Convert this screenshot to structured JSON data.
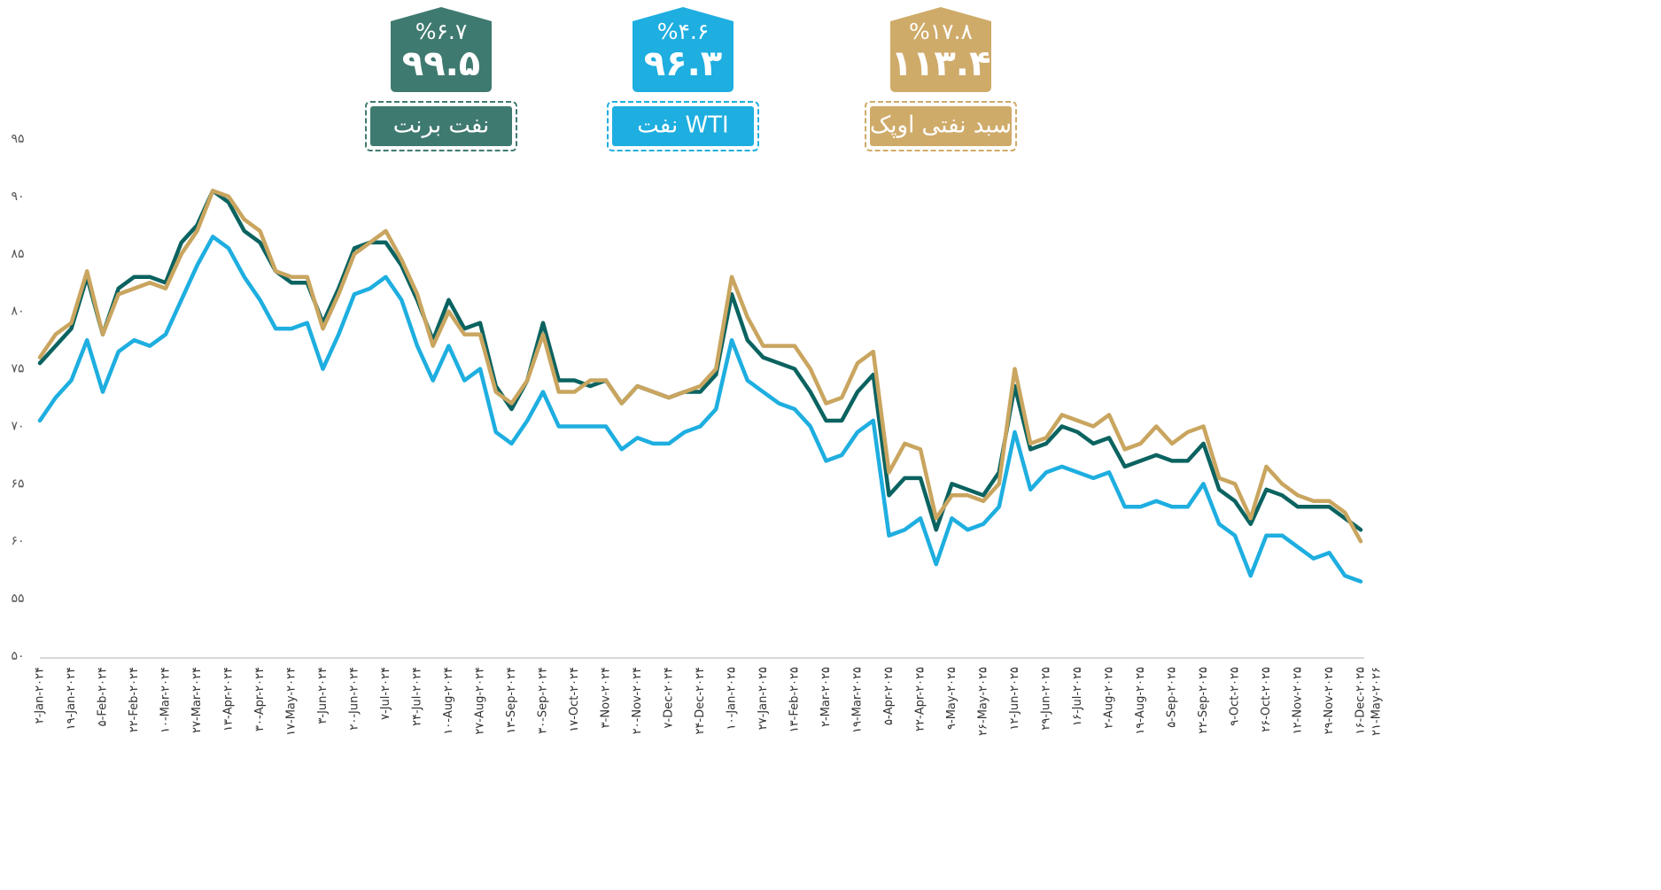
{
  "chart_data": {
    "type": "line",
    "categories": [
      "۲-Jan-۲۰۲۴",
      null,
      "۱۹-Jan-۲۰۲۴",
      null,
      "۵-Feb-۲۰۲۴",
      null,
      "۲۲-Feb-۲۰۲۴",
      null,
      "۱۰-Mar-۲۰۲۴",
      null,
      "۲۷-Mar-۲۰۲۴",
      null,
      "۱۳-Apr-۲۰۲۴",
      null,
      "۳۰-Apr-۲۰۲۴",
      null,
      "۱۷-May-۲۰۲۴",
      null,
      "۳-Jun-۲۰۲۴",
      null,
      "۲۰-Jun-۲۰۲۴",
      null,
      "۷-Jul-۲۰۲۴",
      null,
      "۲۴-Jul-۲۰۲۴",
      null,
      "۱۰-Aug-۲۰۲۴",
      null,
      "۲۷-Aug-۲۰۲۴",
      null,
      "۱۳-Sep-۲۰۲۴",
      null,
      "۳۰-Sep-۲۰۲۴",
      null,
      "۱۷-Oct-۲۰۲۴",
      null,
      "۳-Nov-۲۰۲۴",
      null,
      "۲۰-Nov-۲۰۲۴",
      null,
      "۷-Dec-۲۰۲۴",
      null,
      "۲۴-Dec-۲۰۲۴",
      null,
      "۱۰-Jan-۲۰۲۵",
      null,
      "۲۷-Jan-۲۰۲۵",
      null,
      "۱۳-Feb-۲۰۲۵",
      null,
      "۲-Mar-۲۰۲۵",
      null,
      "۱۹-Mar-۲۰۲۵",
      null,
      "۵-Apr-۲۰۲۵",
      null,
      "۲۲-Apr-۲۰۲۵",
      null,
      "۹-May-۲۰۲۵",
      null,
      "۲۶-May-۲۰۲۵",
      null,
      "۱۲-Jun-۲۰۲۵",
      null,
      "۲۹-Jun-۲۰۲۵",
      null,
      "۱۶-Jul-۲۰۲۵",
      null,
      "۲-Aug-۲۰۲۵",
      null,
      "۱۹-Aug-۲۰۲۵",
      null,
      "۵-Sep-۲۰۲۵",
      null,
      "۲۲-Sep-۲۰۲۵",
      null,
      "۹-Oct-۲۰۲۵",
      null,
      "۲۶-Oct-۲۰۲۵",
      null,
      "۱۲-Nov-۲۰۲۵",
      null,
      "۲۹-Nov-۲۰۲۵",
      null,
      "۱۶-Dec-۲۰۲۵",
      "۲۱-May-۲۰۲۶"
    ],
    "series": [
      {
        "name": "نفت WTI",
        "color": "#1eaee0",
        "badge_color": "#1eaee0",
        "badge_value": "۹۶.۳",
        "badge_change": "%۴.۶",
        "values": [
          70.5,
          72.5,
          74,
          77.5,
          73,
          76.5,
          77.5,
          77,
          78,
          81,
          84,
          86.5,
          85.5,
          83,
          81,
          78.5,
          78.5,
          79,
          75,
          78,
          81.5,
          82,
          83,
          81,
          77,
          74,
          77,
          74,
          75,
          69.5,
          68.5,
          70.5,
          73,
          70,
          70,
          70,
          70,
          68,
          69,
          68.5,
          68.5,
          69.5,
          70,
          71.5,
          77.5,
          74,
          73,
          72,
          71.5,
          70,
          67,
          67.5,
          69.5,
          70.5,
          60.5,
          61,
          62,
          58,
          62,
          61,
          61.5,
          63,
          69.5,
          64.5,
          66,
          66.5,
          66,
          65.5,
          66,
          63,
          63,
          63.5,
          63,
          63,
          65,
          61.5,
          60.5,
          57,
          60.5,
          60.5,
          59.5,
          58.5,
          59,
          57,
          56.5,
          null
        ]
      },
      {
        "name": "نفت برنت",
        "color": "#0b6360",
        "badge_color": "#3f7a70",
        "badge_value": "۹۹.۵",
        "badge_change": "%۶.۷",
        "values": [
          75.5,
          77,
          78.5,
          83,
          78,
          82,
          83,
          83,
          82.5,
          86,
          87.5,
          90.5,
          89.5,
          87,
          86,
          83.5,
          82.5,
          82.5,
          79,
          82,
          85.5,
          86,
          86,
          84,
          81,
          77.5,
          81,
          78.5,
          79,
          73.5,
          71.5,
          74,
          79,
          74,
          74,
          73.5,
          74,
          72,
          73.5,
          73,
          72.5,
          73,
          73,
          74.5,
          81.5,
          77.5,
          76,
          75.5,
          75,
          73,
          70.5,
          70.5,
          73,
          74.5,
          64,
          65.5,
          65.5,
          61,
          65,
          64.5,
          64,
          66,
          73.5,
          68,
          68.5,
          70,
          69.5,
          68.5,
          69,
          66.5,
          67,
          67.5,
          67,
          67,
          68.5,
          64.5,
          63.5,
          61.5,
          64.5,
          64,
          63,
          63,
          63,
          62,
          61,
          null
        ]
      },
      {
        "name": "سبد نفتی اوپک",
        "color": "#c9a55f",
        "badge_color": "#cfab6a",
        "badge_value": "۱۱۳.۴",
        "badge_change": "%۱۷.۸",
        "values": [
          76,
          78,
          79,
          83.5,
          78,
          81.5,
          82,
          82.5,
          82,
          85,
          87,
          90.5,
          90,
          88,
          87,
          83.5,
          83,
          83,
          78.5,
          81.5,
          85,
          86,
          87,
          84.5,
          81.5,
          77,
          80,
          78,
          78,
          73,
          72,
          74,
          78,
          73,
          73,
          74,
          74,
          72,
          73.5,
          73,
          72.5,
          73,
          73.5,
          75,
          83,
          79.5,
          77,
          77,
          77,
          75,
          72,
          72.5,
          75.5,
          76.5,
          66,
          68.5,
          68,
          62,
          64,
          64,
          63.5,
          65,
          75,
          68.5,
          69,
          71,
          70.5,
          70,
          71,
          68,
          68.5,
          70,
          68.5,
          69.5,
          70,
          65.5,
          65,
          62,
          66.5,
          65,
          64,
          63.5,
          63.5,
          62.5,
          60,
          null
        ]
      }
    ],
    "ylim": [
      50,
      95
    ],
    "yticks": [
      {
        "value": 50,
        "label": "۵۰"
      },
      {
        "value": 55,
        "label": "۵۵"
      },
      {
        "value": 60,
        "label": "۶۰"
      },
      {
        "value": 65,
        "label": "۶۵"
      },
      {
        "value": 70,
        "label": "۷۰"
      },
      {
        "value": 75,
        "label": "۷۵"
      },
      {
        "value": 80,
        "label": "۸۰"
      },
      {
        "value": 85,
        "label": "۸۵"
      },
      {
        "value": 90,
        "label": "۹۰"
      },
      {
        "value": 95,
        "label": "۹۵"
      }
    ]
  }
}
